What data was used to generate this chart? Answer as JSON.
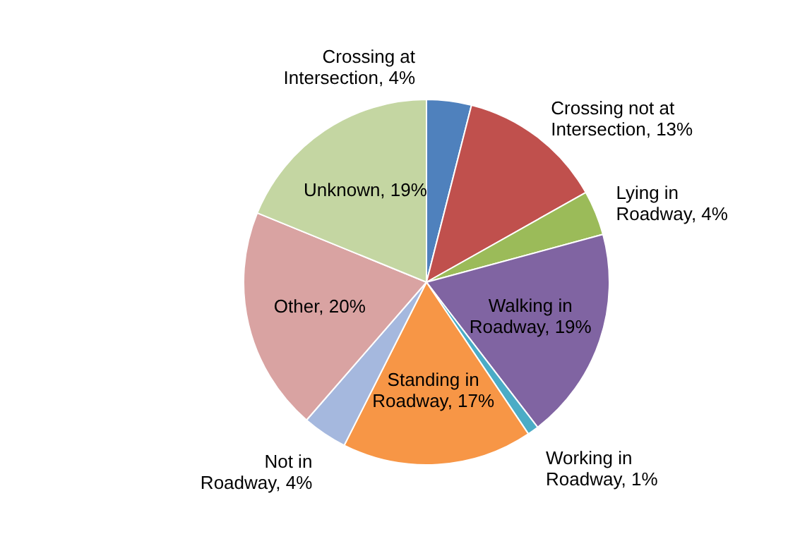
{
  "chart_data": {
    "type": "pie",
    "categories": [
      "Crossing at Intersection",
      "Crossing not at Intersection",
      "Lying in Roadway",
      "Walking in Roadway",
      "Working in Roadway",
      "Standing in Roadway",
      "Not in Roadway",
      "Other",
      "Unknown"
    ],
    "values": [
      4,
      13,
      4,
      19,
      1,
      17,
      4,
      20,
      19
    ],
    "value_labels": [
      "4%",
      "13%",
      "4%",
      "19%",
      "1%",
      "17%",
      "4%",
      "20%",
      "19%"
    ],
    "colors": [
      "#4f81bd",
      "#c0504d",
      "#9bbb59",
      "#8064a2",
      "#4bacc6",
      "#f79646",
      "#a5b8de",
      "#d9a3a2",
      "#c4d6a2"
    ],
    "legend": false
  }
}
